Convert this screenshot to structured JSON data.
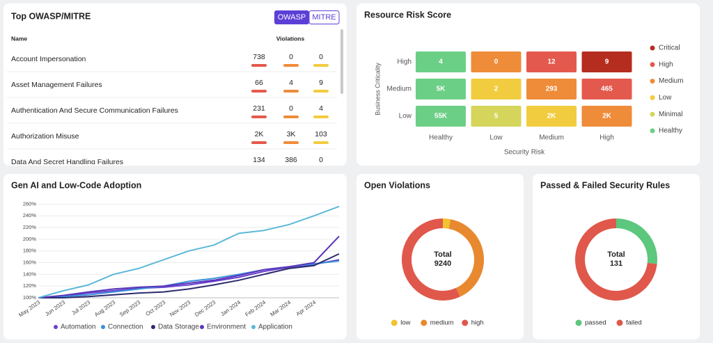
{
  "owasp": {
    "title": "Top OWASP/MITRE",
    "tabs": [
      "OWASP",
      "MITRE"
    ],
    "columns": [
      "Name",
      "Violations"
    ],
    "rows": [
      [
        "Account Impersonation",
        "738",
        "0",
        "0"
      ],
      [
        "Asset Management Failures",
        "66",
        "4",
        "9"
      ],
      [
        "Authentication And Secure Communication Failures",
        "231",
        "0",
        "4"
      ],
      [
        "Authorization Misuse",
        "2K",
        "3K",
        "103"
      ],
      [
        "Data And Secret Handling Failures",
        "134",
        "386",
        "0"
      ]
    ]
  },
  "risk": {
    "title": "Resource Risk Score",
    "ylabel": "Business Criticality",
    "xlabel": "Security Risk",
    "rows": [
      "High",
      "Medium",
      "Low"
    ],
    "columns": [
      "Healthy",
      "Low",
      "Medium",
      "High"
    ],
    "cells": [
      [
        {
          "label": "4",
          "color": "#6ccf86"
        },
        {
          "label": "0",
          "color": "#ef8c3a"
        },
        {
          "label": "12",
          "color": "#e4594d"
        },
        {
          "label": "9",
          "color": "#b52d1f"
        }
      ],
      [
        {
          "label": "5K",
          "color": "#6ccf86"
        },
        {
          "label": "2",
          "color": "#f2cc3f"
        },
        {
          "label": "293",
          "color": "#ef8c3a"
        },
        {
          "label": "465",
          "color": "#e4594d"
        }
      ],
      [
        {
          "label": "55K",
          "color": "#6ccf86"
        },
        {
          "label": "5",
          "color": "#d4d55a"
        },
        {
          "label": "2K",
          "color": "#f2cc3f"
        },
        {
          "label": "2K",
          "color": "#ef8c3a"
        }
      ]
    ],
    "legend": [
      {
        "name": "Critical",
        "color": "#b52d1f"
      },
      {
        "name": "High",
        "color": "#e4594d"
      },
      {
        "name": "Medium",
        "color": "#ef8c3a"
      },
      {
        "name": "Low",
        "color": "#f2cc3f"
      },
      {
        "name": "Minimal",
        "color": "#d4d55a"
      },
      {
        "name": "Healthy",
        "color": "#6ccf86"
      }
    ]
  },
  "chart_data": [
    {
      "type": "line",
      "title": "Gen AI and Low-Code Adoption",
      "categories": [
        "May 2023",
        "Jun 2023",
        "Jul 2023",
        "Aug 2023",
        "Sep 2023",
        "Oct 2023",
        "Nov 2023",
        "Dec 2023",
        "Jan 2024",
        "Feb 2024",
        "Mar 2024",
        "Apr 2024",
        null
      ],
      "series": [
        {
          "name": "Automation",
          "color": "#6a3fd0",
          "values": [
            100,
            103,
            108,
            112,
            116,
            118,
            122,
            128,
            135,
            145,
            152,
            157,
            165
          ]
        },
        {
          "name": "Connection",
          "color": "#3a8fd9",
          "values": [
            100,
            102,
            105,
            110,
            115,
            120,
            128,
            133,
            140,
            148,
            153,
            158,
            163
          ]
        },
        {
          "name": "Data Storage",
          "color": "#2b2a6e",
          "values": [
            100,
            100,
            102,
            105,
            108,
            110,
            115,
            122,
            130,
            140,
            150,
            155,
            175
          ]
        },
        {
          "name": "Environment",
          "color": "#5a35b8",
          "values": [
            100,
            104,
            110,
            115,
            118,
            120,
            125,
            130,
            138,
            148,
            153,
            160,
            205
          ]
        },
        {
          "name": "Application",
          "color": "#5bb8d8",
          "values": [
            100,
            112,
            122,
            140,
            150,
            165,
            180,
            190,
            210,
            215,
            225,
            240,
            256
          ]
        }
      ],
      "ylim": [
        100,
        264
      ],
      "yticks": [
        {
          "value": 100,
          "label": "100%"
        },
        {
          "value": 120,
          "label": "120%"
        },
        {
          "value": 140,
          "label": "140%"
        },
        {
          "value": 160,
          "label": "160%"
        },
        {
          "value": 180,
          "label": "180%"
        },
        {
          "value": 200,
          "label": "200%"
        },
        {
          "value": 220,
          "label": "220%"
        },
        {
          "value": 240,
          "label": "240%"
        },
        {
          "value": 260,
          "label": "260%"
        }
      ],
      "grid": true
    },
    {
      "type": "donut",
      "title": "Open Violations",
      "center_label": "Total",
      "total": 9240,
      "categories": [
        "low",
        "medium",
        "high"
      ],
      "values": [
        280,
        3700,
        5260
      ],
      "colors": [
        "#f2c230",
        "#e8892f",
        "#e0584b"
      ]
    },
    {
      "type": "donut",
      "title": "Passed & Failed Security Rules",
      "center_label": "Total",
      "total": 131,
      "categories": [
        "passed",
        "failed"
      ],
      "values": [
        35,
        96
      ],
      "colors": [
        "#5cc77d",
        "#e0584b"
      ]
    }
  ]
}
